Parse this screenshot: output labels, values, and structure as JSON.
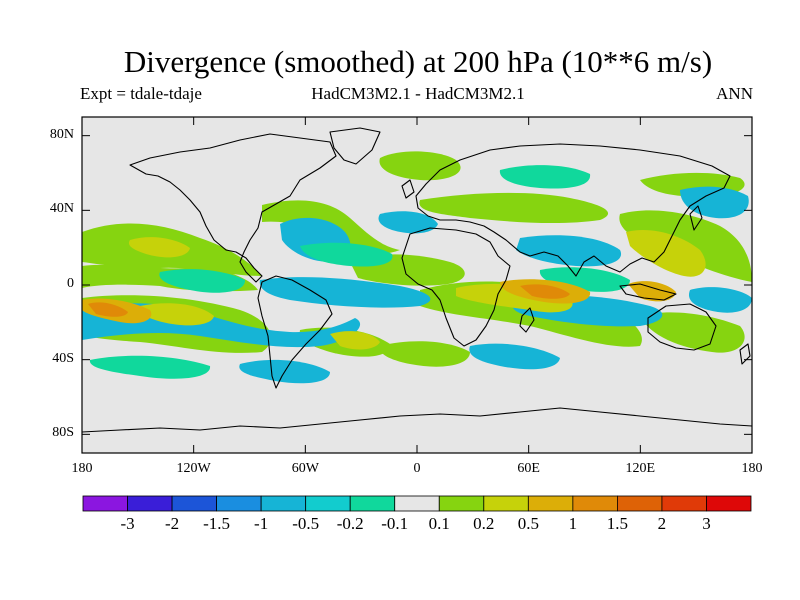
{
  "header": {
    "title": "Divergence (smoothed) at 200 hPa (10**6 m/s)",
    "subtitle_left": "Expt = tdale-tdaje",
    "subtitle_center": "HadCM3M2.1 - HadCM3M2.1",
    "subtitle_right": "ANN"
  },
  "axes": {
    "y_ticks": [
      {
        "label": "80N",
        "lat": 80
      },
      {
        "label": "40N",
        "lat": 40
      },
      {
        "label": "0",
        "lat": 0
      },
      {
        "label": "40S",
        "lat": -40
      },
      {
        "label": "80S",
        "lat": -80
      }
    ],
    "x_ticks": [
      {
        "label": "180",
        "lon": -180
      },
      {
        "label": "120W",
        "lon": -120
      },
      {
        "label": "60W",
        "lon": -60
      },
      {
        "label": "0",
        "lon": 0
      },
      {
        "label": "60E",
        "lon": 60
      },
      {
        "label": "120E",
        "lon": 120
      },
      {
        "label": "180",
        "lon": 180
      }
    ]
  },
  "colorbar": {
    "labels": [
      "-3",
      "-2",
      "-1.5",
      "-1",
      "-0.5",
      "-0.2",
      "-0.1",
      "0.1",
      "0.2",
      "0.5",
      "1",
      "1.5",
      "2",
      "3"
    ],
    "colors": [
      "#8b16e0",
      "#3a1ed8",
      "#1c55d8",
      "#1a8ee0",
      "#16b4d6",
      "#12ccce",
      "#10d89c",
      "#e6e6e6",
      "#86d410",
      "#c6d20a",
      "#dcae08",
      "#e08a08",
      "#de6206",
      "#e03a08",
      "#de0808"
    ]
  },
  "map": {
    "background_color": "#e6e6e6",
    "coastline_color": "#000000"
  }
}
